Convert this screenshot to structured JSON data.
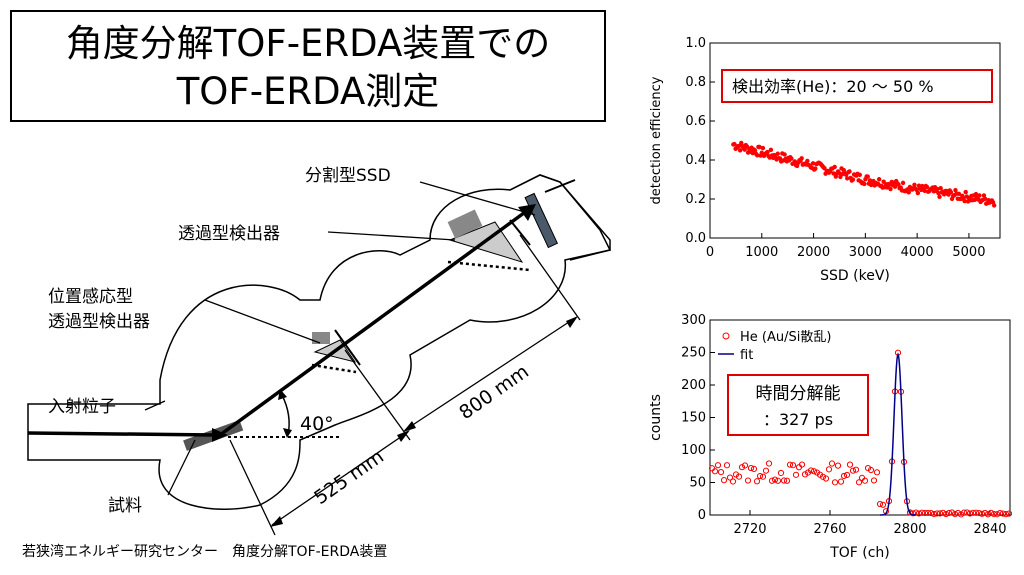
{
  "title": {
    "line1": "角度分解TOF-ERDA装置での",
    "line2": "TOF-ERDA測定"
  },
  "diagram": {
    "labels": {
      "ssd": "分割型SSD",
      "transmission_detector": "透過型検出器",
      "position_sensitive_line1": "位置感応型",
      "position_sensitive_line2": "透過型検出器",
      "incident_particle": "入射粒子",
      "sample": "試料",
      "angle": "40°",
      "dist1": "525 mm",
      "dist2": "800 mm"
    },
    "caption": "若狭湾エネルギー研究センター　角度分解TOF-ERDA装置"
  },
  "chart_data": [
    {
      "type": "scatter",
      "xlabel": "SSD (keV)",
      "ylabel": "detection efficiency",
      "xlim": [
        0,
        5600
      ],
      "ylim": [
        0,
        1.0
      ],
      "xticks": [
        0,
        1000,
        2000,
        3000,
        4000,
        5000
      ],
      "yticks": [
        0.0,
        0.2,
        0.4,
        0.6,
        0.8,
        1.0
      ],
      "annotation": "検出効率(He)：20 〜 50 %",
      "trend": {
        "x": [
          450,
          1000,
          2000,
          3000,
          4000,
          5000,
          5500
        ],
        "y": [
          0.48,
          0.44,
          0.37,
          0.3,
          0.25,
          0.21,
          0.19
        ]
      },
      "color": "#ff0000"
    },
    {
      "type": "scatter",
      "xlabel": "TOF (ch)",
      "ylabel": "counts",
      "xlim": [
        2700,
        2850
      ],
      "ylim": [
        0,
        300
      ],
      "xticks": [
        2720,
        2760,
        2800,
        2840
      ],
      "yticks": [
        0,
        50,
        100,
        150,
        200,
        250,
        300
      ],
      "annotation_line1": "時間分解能",
      "annotation_line2": "：327 ps",
      "series": [
        {
          "name": "He (Au/Si散乱)",
          "marker": "open-circle",
          "color": "#ff0000",
          "background_level": 65,
          "peak_center": 2794,
          "peak_height": 247,
          "peak_sigma": 2.0
        },
        {
          "name": "fit",
          "marker": "line",
          "color": "#00008b",
          "peak_center": 2794,
          "peak_height": 247,
          "peak_sigma": 2.0
        }
      ]
    }
  ]
}
